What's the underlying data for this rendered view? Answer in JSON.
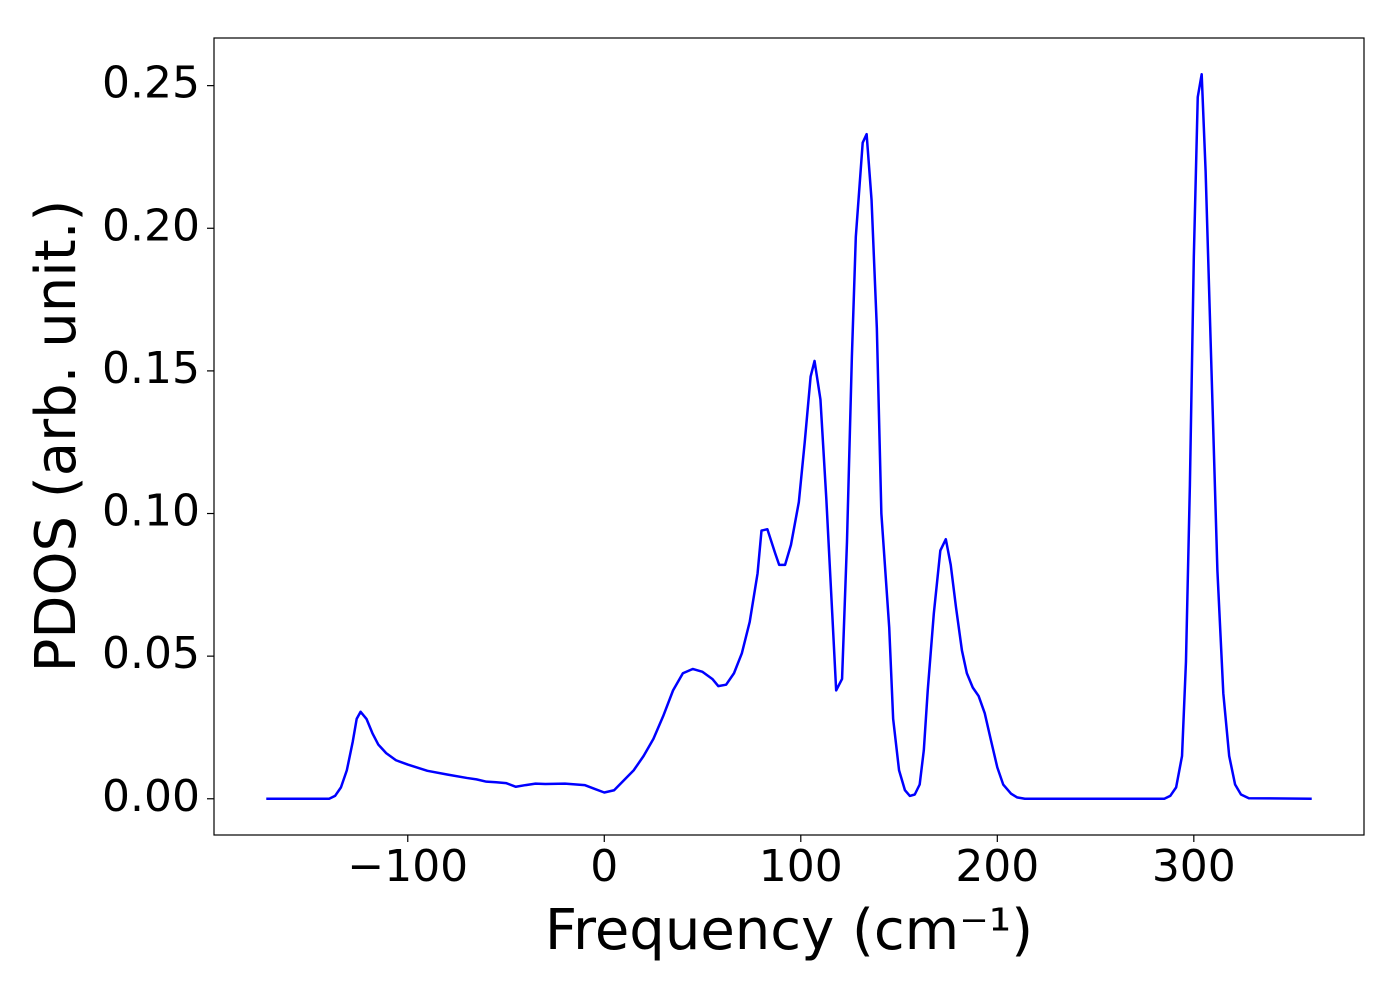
{
  "chart_data": {
    "type": "line",
    "xlabel": "Frequency (cm⁻¹)",
    "ylabel": "PDOS (arb. unit.)",
    "x": [
      -172,
      -140,
      -137,
      -134,
      -131,
      -128,
      -126,
      -124,
      -121,
      -118,
      -115,
      -111,
      -106,
      -100,
      -90,
      -80,
      -70,
      -65,
      -60,
      -55,
      -50,
      -45,
      -40,
      -35,
      -30,
      -20,
      -10,
      -5,
      0,
      5,
      10,
      15,
      20,
      25,
      30,
      35,
      40,
      45,
      50,
      55,
      58,
      62,
      66,
      70,
      74,
      78,
      80,
      83,
      87,
      89,
      92,
      95,
      99,
      102,
      105,
      107,
      110,
      113,
      116,
      118,
      121,
      123.5,
      126,
      128,
      131.5,
      133.5,
      136,
      138.7,
      141,
      145,
      147,
      150,
      153,
      155.5,
      158,
      160.5,
      162.6,
      164.6,
      167.7,
      171,
      173.8,
      176.3,
      179,
      182,
      184.5,
      187.5,
      190.5,
      193.6,
      196.6,
      200,
      203,
      207,
      210,
      214,
      285,
      288,
      291,
      294,
      296,
      298,
      300,
      302,
      304,
      306,
      309,
      312,
      315,
      318,
      321,
      324,
      328,
      360
    ],
    "series": [
      {
        "color": "#0000ff",
        "values": [
          0,
          0,
          0.001,
          0.004,
          0.01,
          0.02,
          0.028,
          0.0305,
          0.028,
          0.023,
          0.019,
          0.016,
          0.0135,
          0.012,
          0.0098,
          0.0085,
          0.0073,
          0.0068,
          0.006,
          0.0058,
          0.0055,
          0.0042,
          0.0048,
          0.0053,
          0.0052,
          0.0053,
          0.0048,
          0.0035,
          0.0022,
          0.003,
          0.0065,
          0.01,
          0.015,
          0.021,
          0.029,
          0.038,
          0.044,
          0.0455,
          0.0445,
          0.042,
          0.0395,
          0.04,
          0.044,
          0.051,
          0.062,
          0.079,
          0.094,
          0.0945,
          0.086,
          0.082,
          0.082,
          0.089,
          0.104,
          0.125,
          0.148,
          0.1535,
          0.14,
          0.105,
          0.065,
          0.038,
          0.042,
          0.09,
          0.155,
          0.197,
          0.23,
          0.233,
          0.21,
          0.165,
          0.1,
          0.06,
          0.028,
          0.01,
          0.003,
          0.001,
          0.0015,
          0.005,
          0.017,
          0.038,
          0.065,
          0.087,
          0.091,
          0.082,
          0.067,
          0.052,
          0.044,
          0.039,
          0.036,
          0.03,
          0.021,
          0.011,
          0.005,
          0.0018,
          0.0005,
          0,
          0,
          0.001,
          0.004,
          0.015,
          0.048,
          0.11,
          0.19,
          0.246,
          0.254,
          0.22,
          0.15,
          0.08,
          0.037,
          0.015,
          0.005,
          0.0015,
          0.0002,
          0
        ]
      }
    ],
    "xlim": [
      -198.6,
      386.6
    ],
    "ylim": [
      -0.0127,
      0.2667
    ],
    "xticks": [
      {
        "value": -100,
        "label": "−100"
      },
      0,
      100,
      200,
      300
    ],
    "yticks": [
      {
        "value": 0,
        "label": "0.00"
      },
      {
        "value": 0.05,
        "label": "0.05"
      },
      {
        "value": 0.1,
        "label": "0.10"
      },
      {
        "value": 0.15,
        "label": "0.15"
      },
      {
        "value": 0.2,
        "label": "0.20"
      },
      {
        "value": 0.25,
        "label": "0.25"
      }
    ]
  }
}
